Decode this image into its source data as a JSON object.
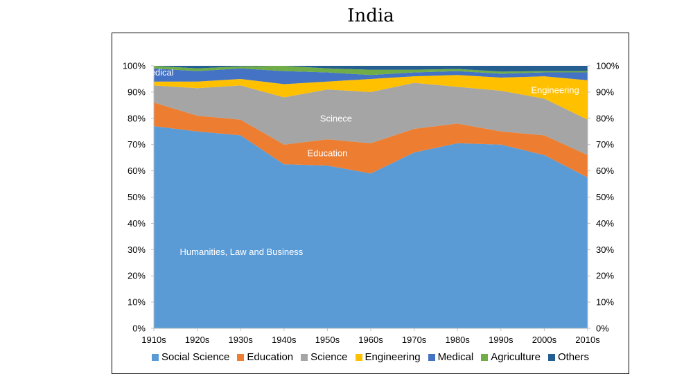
{
  "chart_data": {
    "type": "area",
    "title": "India",
    "x": [
      "1910s",
      "1920s",
      "1930s",
      "1940s",
      "1950s",
      "1960s",
      "1970s",
      "1980s",
      "1990s",
      "2000s",
      "2010s"
    ],
    "ylim": [
      0,
      100
    ],
    "y_ticks": [
      "0%",
      "10%",
      "20%",
      "30%",
      "40%",
      "50%",
      "60%",
      "70%",
      "80%",
      "90%",
      "100%"
    ],
    "stacked": true,
    "grid": false,
    "legend_position": "bottom",
    "series": [
      {
        "name": "Social Science",
        "color": "#5b9bd5",
        "values": [
          77,
          75,
          73.5,
          62.5,
          62,
          59,
          67,
          70.5,
          70,
          66,
          57.5
        ]
      },
      {
        "name": "Education",
        "color": "#ed7d31",
        "values": [
          9,
          6,
          6,
          7.5,
          10,
          11.5,
          9,
          7.5,
          5,
          7.5,
          8.5
        ]
      },
      {
        "name": "Science",
        "color": "#a5a5a5",
        "values": [
          6.5,
          10.5,
          13,
          18,
          19,
          19.5,
          17.5,
          14,
          15.5,
          14,
          13.5
        ]
      },
      {
        "name": "Engineering",
        "color": "#ffc000",
        "values": [
          1.5,
          2.5,
          2.5,
          5,
          3,
          5,
          2.5,
          4.5,
          5,
          8.5,
          15
        ]
      },
      {
        "name": "Medical",
        "color": "#4472c4",
        "values": [
          5,
          4,
          4,
          5,
          3.5,
          1.5,
          1.5,
          1.5,
          1.5,
          1.5,
          3
        ]
      },
      {
        "name": "Agriculture",
        "color": "#70ad47",
        "values": [
          1,
          1,
          0.8,
          2,
          1.5,
          2,
          1,
          0.8,
          0.8,
          0.5,
          0.5
        ]
      },
      {
        "name": "Others",
        "color": "#255e91",
        "values": [
          0,
          1,
          0.2,
          0,
          1,
          1.5,
          1.5,
          1.2,
          2.2,
          2,
          2
        ]
      }
    ],
    "annotations": [
      {
        "text": "Medical",
        "x": 0.1,
        "y": 97.5
      },
      {
        "text": "Engineering",
        "x": 9.25,
        "y": 90.8
      },
      {
        "text": "Scinece",
        "x": 4.2,
        "y": 80
      },
      {
        "text": "Education",
        "x": 4.0,
        "y": 66.8
      },
      {
        "text": "Humanities, Law and Business",
        "x": 0.6,
        "y": 29.2
      }
    ]
  }
}
